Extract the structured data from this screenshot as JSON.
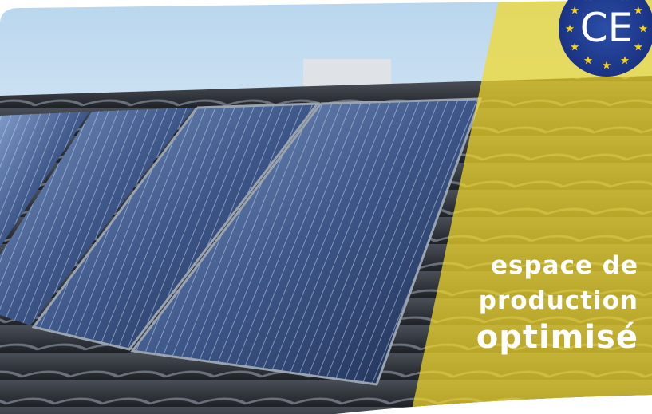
{
  "headline": {
    "lines": [
      "espace de",
      "production",
      "optimisé"
    ]
  },
  "badge": {
    "label": "CE"
  }
}
